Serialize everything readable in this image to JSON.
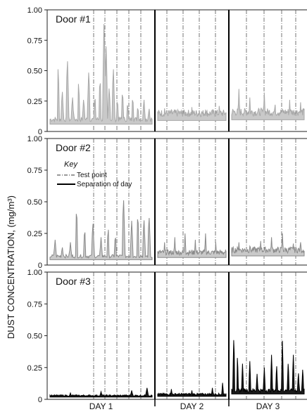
{
  "chart_data": {
    "type": "line",
    "ylabel": "DUST CONCENTRATION, (mg/m³)",
    "ylim": [
      0,
      1.0
    ],
    "y_ticks": [
      "0",
      "0.25",
      "0.50",
      "0.75",
      "1.00"
    ],
    "days": [
      "DAY 1",
      "DAY 2",
      "DAY 3"
    ],
    "grid": false,
    "panels": [
      {
        "title": "Door #1",
        "color": "#c9c9c9",
        "stroke": "#a8a8a8",
        "days": [
          {
            "day": "DAY 1",
            "baseline": 0.1,
            "spikes": [
              [
                0.08,
                0.55
              ],
              [
                0.12,
                0.35
              ],
              [
                0.17,
                0.62
              ],
              [
                0.22,
                0.3
              ],
              [
                0.28,
                0.42
              ],
              [
                0.33,
                0.28
              ],
              [
                0.38,
                0.52
              ],
              [
                0.44,
                0.31
              ],
              [
                0.49,
                0.46
              ],
              [
                0.53,
                0.95
              ],
              [
                0.55,
                0.7
              ],
              [
                0.58,
                0.38
              ],
              [
                0.62,
                0.55
              ],
              [
                0.66,
                0.28
              ],
              [
                0.71,
                0.35
              ],
              [
                0.76,
                0.25
              ],
              [
                0.81,
                0.3
              ],
              [
                0.86,
                0.22
              ],
              [
                0.92,
                0.28
              ],
              [
                0.97,
                0.2
              ]
            ]
          },
          {
            "day": "DAY 2",
            "baseline": 0.15,
            "spikes": [
              [
                0.1,
                0.19
              ],
              [
                0.3,
                0.17
              ],
              [
                0.5,
                0.2
              ],
              [
                0.7,
                0.18
              ],
              [
                0.9,
                0.21
              ]
            ]
          },
          {
            "day": "DAY 3",
            "baseline": 0.16,
            "spikes": [
              [
                0.1,
                0.35
              ],
              [
                0.25,
                0.28
              ],
              [
                0.45,
                0.32
              ],
              [
                0.6,
                0.22
              ],
              [
                0.8,
                0.26
              ],
              [
                0.95,
                0.24
              ]
            ]
          }
        ]
      },
      {
        "title": "Door #2",
        "color": "#c9c9c9",
        "stroke": "#8a8a8a",
        "key_title": "Key",
        "key_items": [
          "Test point",
          "Separation of day"
        ],
        "days": [
          {
            "day": "DAY 1",
            "baseline": 0.07,
            "spikes": [
              [
                0.05,
                0.2
              ],
              [
                0.12,
                0.15
              ],
              [
                0.2,
                0.18
              ],
              [
                0.26,
                0.47
              ],
              [
                0.34,
                0.3
              ],
              [
                0.42,
                0.35
              ],
              [
                0.5,
                0.22
              ],
              [
                0.57,
                0.3
              ],
              [
                0.64,
                0.25
              ],
              [
                0.72,
                0.55
              ],
              [
                0.8,
                0.35
              ],
              [
                0.86,
                0.42
              ],
              [
                0.92,
                0.38
              ],
              [
                0.97,
                0.4
              ]
            ]
          },
          {
            "day": "DAY 2",
            "baseline": 0.1,
            "spikes": [
              [
                0.1,
                0.18
              ],
              [
                0.25,
                0.22
              ],
              [
                0.4,
                0.25
              ],
              [
                0.55,
                0.2
              ],
              [
                0.7,
                0.25
              ],
              [
                0.85,
                0.18
              ]
            ]
          },
          {
            "day": "DAY 3",
            "baseline": 0.12,
            "spikes": [
              [
                0.1,
                0.18
              ],
              [
                0.25,
                0.15
              ],
              [
                0.4,
                0.19
              ],
              [
                0.55,
                0.22
              ],
              [
                0.7,
                0.25
              ],
              [
                0.85,
                0.17
              ],
              [
                0.95,
                0.18
              ]
            ]
          }
        ]
      },
      {
        "title": "Door #3",
        "color": "#1a1a1a",
        "stroke": "#000000",
        "days": [
          {
            "day": "DAY 1",
            "baseline": 0.03,
            "spikes": [
              [
                0.2,
                0.05
              ],
              [
                0.5,
                0.06
              ],
              [
                0.8,
                0.07
              ],
              [
                0.95,
                0.09
              ]
            ]
          },
          {
            "day": "DAY 2",
            "baseline": 0.04,
            "spikes": [
              [
                0.2,
                0.08
              ],
              [
                0.5,
                0.07
              ],
              [
                0.8,
                0.09
              ],
              [
                0.95,
                0.13
              ]
            ]
          },
          {
            "day": "DAY 3",
            "baseline": 0.07,
            "spikes": [
              [
                0.03,
                0.5
              ],
              [
                0.08,
                0.35
              ],
              [
                0.15,
                0.28
              ],
              [
                0.25,
                0.3
              ],
              [
                0.35,
                0.2
              ],
              [
                0.45,
                0.25
              ],
              [
                0.55,
                0.35
              ],
              [
                0.62,
                0.28
              ],
              [
                0.7,
                0.46
              ],
              [
                0.78,
                0.3
              ],
              [
                0.85,
                0.35
              ],
              [
                0.92,
                0.22
              ],
              [
                0.98,
                0.25
              ]
            ]
          }
        ]
      }
    ]
  }
}
